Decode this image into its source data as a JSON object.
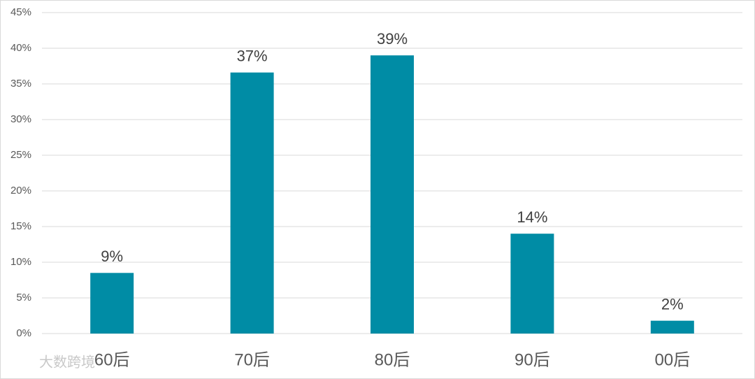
{
  "chart_data": {
    "type": "bar",
    "categories": [
      "60后",
      "70后",
      "80后",
      "90后",
      "00后"
    ],
    "values": [
      8.5,
      36.6,
      39,
      14,
      1.8
    ],
    "value_labels": [
      "9%",
      "37%",
      "39%",
      "14%",
      "2%"
    ],
    "color": "#008ca5",
    "ylim": [
      0,
      45
    ],
    "yticks": [
      {
        "value": 0,
        "label": "0%"
      },
      {
        "value": 5,
        "label": "5%"
      },
      {
        "value": 10,
        "label": "10%"
      },
      {
        "value": 15,
        "label": "15%"
      },
      {
        "value": 20,
        "label": "20%"
      },
      {
        "value": 25,
        "label": "25%"
      },
      {
        "value": 30,
        "label": "30%"
      },
      {
        "value": 35,
        "label": "35%"
      },
      {
        "value": 40,
        "label": "40%"
      },
      {
        "value": 45,
        "label": "45%"
      }
    ],
    "grid": true,
    "watermark": "大数跨境"
  }
}
